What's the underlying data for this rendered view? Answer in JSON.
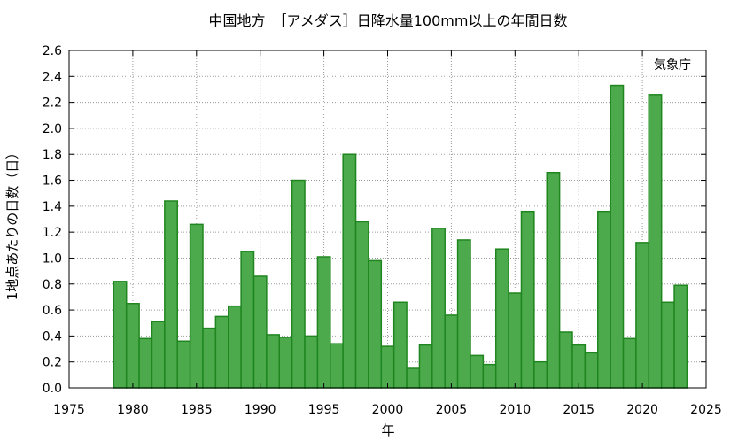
{
  "chart_data": {
    "type": "bar",
    "title": "中国地方　［アメダス］日降水量100mm以上の年間日数",
    "xlabel": "年",
    "ylabel": "1地点あたりの日数（日）",
    "credit": "気象庁",
    "xlim": [
      1975,
      2025
    ],
    "ylim": [
      0,
      2.6
    ],
    "x_ticks": [
      1975,
      1980,
      1985,
      1990,
      1995,
      2000,
      2005,
      2010,
      2015,
      2020,
      2025
    ],
    "y_ticks": [
      "0.0",
      "0.2",
      "0.4",
      "0.6",
      "0.8",
      "1.0",
      "1.2",
      "1.4",
      "1.6",
      "1.8",
      "2.0",
      "2.2",
      "2.4",
      "2.6"
    ],
    "grid": true,
    "bar_color": "#4caa4c",
    "bar_edge_color": "#1f861f",
    "x": [
      1979,
      1980,
      1981,
      1982,
      1983,
      1984,
      1985,
      1986,
      1987,
      1988,
      1989,
      1990,
      1991,
      1992,
      1993,
      1994,
      1995,
      1996,
      1997,
      1998,
      1999,
      2000,
      2001,
      2002,
      2003,
      2004,
      2005,
      2006,
      2007,
      2008,
      2009,
      2010,
      2011,
      2012,
      2013,
      2014,
      2015,
      2016,
      2017,
      2018,
      2019,
      2020,
      2021,
      2022,
      2023
    ],
    "values": [
      0.82,
      0.65,
      0.38,
      0.51,
      1.44,
      0.36,
      1.26,
      0.46,
      0.55,
      0.63,
      1.05,
      0.86,
      0.41,
      0.39,
      1.6,
      0.4,
      1.01,
      0.34,
      1.8,
      1.28,
      0.98,
      0.32,
      0.66,
      0.15,
      0.33,
      1.23,
      0.56,
      1.14,
      0.25,
      0.18,
      1.07,
      0.73,
      1.36,
      0.2,
      1.66,
      0.43,
      0.33,
      0.27,
      1.36,
      2.33,
      0.38,
      1.12,
      2.26,
      0.66,
      0.79
    ]
  }
}
